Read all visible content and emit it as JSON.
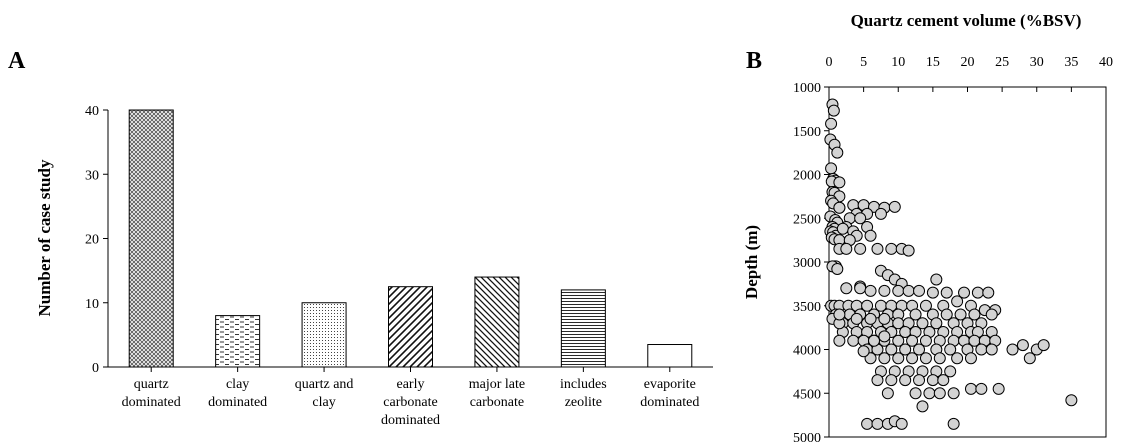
{
  "panels": {
    "a_label": "A",
    "b_label": "B"
  },
  "chart_data": [
    {
      "type": "bar",
      "ylabel": "Number of case study",
      "categories": [
        [
          "quartz",
          "dominated"
        ],
        [
          "clay",
          "dominated"
        ],
        [
          "quartz and",
          "clay"
        ],
        [
          "early",
          "carbonate",
          "dominated"
        ],
        [
          "major late",
          "carbonate"
        ],
        [
          "includes",
          "zeolite"
        ],
        [
          "evaporite",
          "dominated"
        ]
      ],
      "values": [
        40,
        8,
        10,
        12.5,
        14,
        12,
        3.5
      ],
      "patterns": [
        "crosshatch",
        "dashes",
        "dots",
        "diagonal-sparse",
        "diagonal-dense",
        "horizontal",
        "none"
      ],
      "ylim": [
        0,
        40
      ],
      "yticks": [
        0,
        10,
        20,
        30,
        40
      ],
      "grid": false
    },
    {
      "type": "scatter",
      "title": "Quartz cement volume (%BSV)",
      "ylabel": "Depth (m)",
      "xlim": [
        0,
        40
      ],
      "ylim": [
        1000,
        5000
      ],
      "y_inverted": true,
      "x_axis_position": "top",
      "xticks": [
        0,
        5,
        10,
        15,
        20,
        25,
        30,
        35,
        40
      ],
      "yticks": [
        1000,
        1500,
        2000,
        2500,
        3000,
        3500,
        4000,
        4500,
        5000
      ],
      "grid": false,
      "marker_color": "#d3d3d3",
      "x": [
        0.5,
        0.7,
        0.3,
        0.2,
        0.8,
        1.2,
        0.3,
        0.6,
        0.9,
        0.4,
        1.5,
        0.5,
        0.8,
        1.5,
        0.3,
        0.6,
        1.5,
        0.2,
        0.9,
        1.2,
        0.5,
        0.8,
        0.2,
        0.6,
        1.0,
        0.4,
        0.8,
        1.5,
        1.5,
        3.5,
        5.0,
        6.5,
        8.0,
        9.5,
        4.0,
        5.5,
        7.5,
        3.0,
        4.5,
        2.5,
        2.0,
        3.5,
        5.5,
        6.0,
        4.0,
        3.0,
        1.5,
        2.5,
        4.5,
        7.0,
        9.0,
        10.5,
        11.5,
        0.8,
        1.0,
        0.5,
        1.2,
        4.5,
        7.5,
        8.5,
        9.5,
        10.5,
        15.5,
        2.5,
        4.5,
        6.0,
        8.0,
        10.0,
        11.5,
        13.0,
        15.0,
        17.0,
        19.5,
        21.5,
        23.0,
        0.3,
        0.8,
        1.5,
        2.8,
        4.0,
        5.5,
        7.5,
        9.0,
        10.5,
        12.0,
        14.0,
        16.5,
        18.5,
        20.5,
        22.5,
        24.0,
        1.0,
        3.0,
        4.5,
        6.5,
        8.5,
        10.0,
        12.5,
        15.0,
        17.0,
        19.0,
        21.0,
        23.5,
        0.5,
        2.0,
        3.5,
        5.5,
        7.0,
        8.5,
        10.0,
        11.5,
        13.5,
        15.5,
        18.0,
        20.0,
        22.0,
        2.0,
        4.0,
        5.5,
        7.5,
        9.0,
        11.0,
        12.5,
        14.5,
        16.5,
        18.5,
        20.5,
        21.5,
        23.5,
        1.5,
        3.5,
        5.0,
        6.5,
        8.0,
        10.0,
        12.0,
        14.0,
        16.0,
        18.0,
        19.5,
        21.0,
        22.5,
        24.0,
        28.0,
        30.0,
        31.0,
        26.5,
        29.0,
        5.5,
        7.0,
        9.0,
        11.0,
        13.0,
        15.5,
        17.5,
        20.0,
        22.0,
        23.5,
        6.0,
        8.0,
        10.0,
        12.0,
        14.0,
        16.0,
        18.5,
        20.5,
        7.5,
        9.5,
        11.5,
        13.5,
        15.5,
        17.5,
        7.0,
        9.0,
        11.0,
        13.0,
        15.0,
        16.5,
        20.5,
        22.0,
        24.5,
        8.5,
        12.5,
        14.5,
        16.0,
        18.0,
        35.0,
        13.5,
        5.5,
        7.0,
        8.5,
        9.5,
        10.5,
        18.0,
        1.5,
        4.0,
        6.0,
        8.0,
        1.5,
        6.5,
        8.0,
        5.0
      ],
      "y": [
        1200,
        1270,
        1420,
        1600,
        1660,
        1750,
        1930,
        2050,
        2070,
        2080,
        2090,
        2200,
        2210,
        2250,
        2300,
        2330,
        2380,
        2480,
        2520,
        2550,
        2600,
        2620,
        2650,
        2660,
        2700,
        2720,
        2740,
        2750,
        2380,
        2350,
        2350,
        2370,
        2380,
        2370,
        2450,
        2450,
        2450,
        2500,
        2500,
        2600,
        2620,
        2650,
        2600,
        2700,
        2700,
        2750,
        2850,
        2850,
        2850,
        2850,
        2850,
        2850,
        2870,
        3050,
        3050,
        3050,
        3080,
        3280,
        3100,
        3150,
        3200,
        3250,
        3200,
        3300,
        3300,
        3330,
        3330,
        3330,
        3330,
        3330,
        3350,
        3350,
        3350,
        3350,
        3350,
        3500,
        3500,
        3500,
        3500,
        3500,
        3500,
        3500,
        3500,
        3500,
        3500,
        3500,
        3500,
        3450,
        3500,
        3550,
        3550,
        3600,
        3600,
        3600,
        3600,
        3600,
        3600,
        3600,
        3600,
        3600,
        3600,
        3600,
        3600,
        3650,
        3700,
        3700,
        3700,
        3700,
        3700,
        3700,
        3700,
        3700,
        3700,
        3700,
        3700,
        3700,
        3800,
        3800,
        3800,
        3800,
        3800,
        3800,
        3800,
        3800,
        3800,
        3800,
        3800,
        3800,
        3800,
        3900,
        3900,
        3900,
        3900,
        3900,
        3900,
        3900,
        3900,
        3900,
        3900,
        3900,
        3900,
        3900,
        3900,
        3950,
        4000,
        3950,
        4000,
        4100,
        4000,
        4000,
        4000,
        4000,
        4000,
        4000,
        4000,
        4000,
        4000,
        4000,
        4100,
        4100,
        4100,
        4100,
        4100,
        4100,
        4100,
        4100,
        4250,
        4250,
        4250,
        4250,
        4250,
        4250,
        4350,
        4350,
        4350,
        4350,
        4350,
        4350,
        4450,
        4450,
        4450,
        4500,
        4500,
        4500,
        4500,
        4500,
        4580,
        4650,
        4850,
        4850,
        4850,
        4820,
        4850,
        4850,
        3700,
        3650,
        3650,
        3650,
        3600,
        3900,
        3850,
        4020
      ]
    }
  ]
}
